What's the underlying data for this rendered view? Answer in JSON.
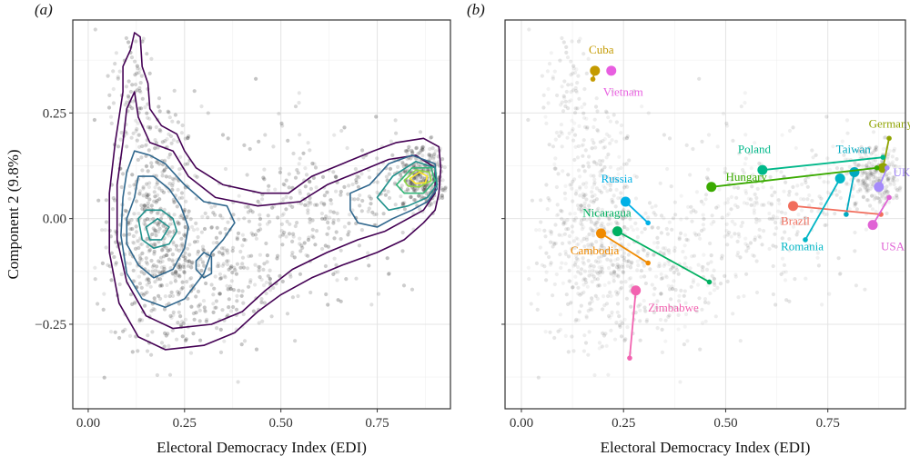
{
  "chart_data": [
    {
      "type": "scatter",
      "panel_label": "(a)",
      "xlabel": "Electoral Democracy Index (EDI)",
      "ylabel": "Component 2 (9.8%)",
      "xlim": [
        -0.04,
        0.94
      ],
      "ylim": [
        -0.45,
        0.47
      ],
      "x_ticks": [
        0.0,
        0.25,
        0.5,
        0.75
      ],
      "x_tick_labels": [
        "0.00",
        "0.25",
        "0.50",
        "0.75"
      ],
      "y_ticks": [
        -0.25,
        0.0,
        0.25
      ],
      "y_tick_labels": [
        "−0.25",
        "0.00",
        "0.25"
      ],
      "grid": true,
      "overlay": "density contours",
      "contour_colors": [
        "#440154",
        "#31688e",
        "#21918c",
        "#35b779",
        "#90d743",
        "#fde725"
      ],
      "contour_levels": [
        {
          "color": "#440154",
          "points": [
            [
              0.09,
              0.3
            ],
            [
              0.09,
              0.36
            ],
            [
              0.11,
              0.4
            ],
            [
              0.12,
              0.44
            ],
            [
              0.135,
              0.43
            ],
            [
              0.14,
              0.36
            ],
            [
              0.155,
              0.32
            ],
            [
              0.16,
              0.26
            ],
            [
              0.19,
              0.22
            ],
            [
              0.23,
              0.2
            ],
            [
              0.25,
              0.16
            ],
            [
              0.28,
              0.12
            ],
            [
              0.35,
              0.08
            ],
            [
              0.45,
              0.06
            ],
            [
              0.52,
              0.06
            ],
            [
              0.58,
              0.1
            ],
            [
              0.66,
              0.13
            ],
            [
              0.74,
              0.16
            ],
            [
              0.8,
              0.18
            ],
            [
              0.87,
              0.19
            ],
            [
              0.91,
              0.17
            ],
            [
              0.915,
              0.12
            ],
            [
              0.91,
              0.06
            ],
            [
              0.9,
              0.02
            ],
            [
              0.87,
              -0.01
            ],
            [
              0.82,
              -0.05
            ],
            [
              0.75,
              -0.08
            ],
            [
              0.66,
              -0.11
            ],
            [
              0.58,
              -0.14
            ],
            [
              0.5,
              -0.18
            ],
            [
              0.44,
              -0.22
            ],
            [
              0.38,
              -0.27
            ],
            [
              0.3,
              -0.3
            ],
            [
              0.2,
              -0.31
            ],
            [
              0.13,
              -0.28
            ],
            [
              0.08,
              -0.2
            ],
            [
              0.055,
              -0.08
            ],
            [
              0.055,
              0.06
            ],
            [
              0.07,
              0.18
            ],
            [
              0.09,
              0.3
            ]
          ]
        },
        {
          "color": "#440154",
          "points": [
            [
              0.1,
              0.26
            ],
            [
              0.12,
              0.3
            ],
            [
              0.13,
              0.24
            ],
            [
              0.16,
              0.18
            ],
            [
              0.22,
              0.16
            ],
            [
              0.26,
              0.1
            ],
            [
              0.33,
              0.05
            ],
            [
              0.44,
              0.03
            ],
            [
              0.55,
              0.04
            ],
            [
              0.62,
              0.08
            ],
            [
              0.7,
              0.11
            ],
            [
              0.78,
              0.14
            ],
            [
              0.85,
              0.15
            ],
            [
              0.9,
              0.12
            ],
            [
              0.9,
              0.06
            ],
            [
              0.87,
              0.02
            ],
            [
              0.83,
              0.0
            ],
            [
              0.77,
              -0.03
            ],
            [
              0.7,
              -0.05
            ],
            [
              0.62,
              -0.08
            ],
            [
              0.53,
              -0.12
            ],
            [
              0.46,
              -0.17
            ],
            [
              0.4,
              -0.22
            ],
            [
              0.32,
              -0.25
            ],
            [
              0.22,
              -0.26
            ],
            [
              0.15,
              -0.23
            ],
            [
              0.1,
              -0.15
            ],
            [
              0.075,
              -0.05
            ],
            [
              0.075,
              0.08
            ],
            [
              0.09,
              0.18
            ],
            [
              0.1,
              0.26
            ]
          ]
        },
        {
          "color": "#31688e",
          "points": [
            [
              0.1,
              0.11
            ],
            [
              0.12,
              0.16
            ],
            [
              0.16,
              0.15
            ],
            [
              0.2,
              0.13
            ],
            [
              0.25,
              0.08
            ],
            [
              0.3,
              0.04
            ],
            [
              0.36,
              0.03
            ],
            [
              0.38,
              -0.01
            ],
            [
              0.35,
              -0.05
            ],
            [
              0.32,
              -0.08
            ],
            [
              0.3,
              -0.13
            ],
            [
              0.25,
              -0.19
            ],
            [
              0.2,
              -0.21
            ],
            [
              0.14,
              -0.19
            ],
            [
              0.1,
              -0.13
            ],
            [
              0.085,
              -0.04
            ],
            [
              0.09,
              0.05
            ],
            [
              0.1,
              0.11
            ]
          ]
        },
        {
          "color": "#31688e",
          "points": [
            [
              0.12,
              0.05
            ],
            [
              0.13,
              0.1
            ],
            [
              0.17,
              0.1
            ],
            [
              0.21,
              0.07
            ],
            [
              0.24,
              0.03
            ],
            [
              0.26,
              -0.02
            ],
            [
              0.25,
              -0.07
            ],
            [
              0.22,
              -0.12
            ],
            [
              0.17,
              -0.14
            ],
            [
              0.13,
              -0.11
            ],
            [
              0.1,
              -0.06
            ],
            [
              0.1,
              0.0
            ],
            [
              0.12,
              0.05
            ]
          ]
        },
        {
          "color": "#31688e",
          "points": [
            [
              0.68,
              0.06
            ],
            [
              0.73,
              0.08
            ],
            [
              0.78,
              0.13
            ],
            [
              0.84,
              0.15
            ],
            [
              0.9,
              0.13
            ],
            [
              0.905,
              0.07
            ],
            [
              0.88,
              0.04
            ],
            [
              0.84,
              0.02
            ],
            [
              0.79,
              0.0
            ],
            [
              0.75,
              -0.02
            ],
            [
              0.7,
              -0.01
            ],
            [
              0.68,
              0.02
            ],
            [
              0.68,
              0.06
            ]
          ]
        },
        {
          "color": "#21918c",
          "points": [
            [
              0.13,
              0.0
            ],
            [
              0.15,
              0.02
            ],
            [
              0.19,
              0.02
            ],
            [
              0.22,
              0.0
            ],
            [
              0.23,
              -0.03
            ],
            [
              0.21,
              -0.06
            ],
            [
              0.17,
              -0.07
            ],
            [
              0.14,
              -0.05
            ],
            [
              0.13,
              0.0
            ]
          ]
        },
        {
          "color": "#21918c",
          "points": [
            [
              0.75,
              0.05
            ],
            [
              0.79,
              0.1
            ],
            [
              0.85,
              0.135
            ],
            [
              0.9,
              0.12
            ],
            [
              0.905,
              0.08
            ],
            [
              0.88,
              0.05
            ],
            [
              0.83,
              0.03
            ],
            [
              0.78,
              0.02
            ],
            [
              0.75,
              0.05
            ]
          ]
        },
        {
          "color": "#21918c",
          "points": [
            [
              0.15,
              -0.02
            ],
            [
              0.18,
              0.0
            ],
            [
              0.21,
              -0.02
            ],
            [
              0.19,
              -0.05
            ],
            [
              0.16,
              -0.05
            ],
            [
              0.15,
              -0.02
            ]
          ]
        },
        {
          "color": "#35b779",
          "points": [
            [
              0.8,
              0.08
            ],
            [
              0.84,
              0.12
            ],
            [
              0.89,
              0.12
            ],
            [
              0.9,
              0.09
            ],
            [
              0.87,
              0.06
            ],
            [
              0.82,
              0.06
            ],
            [
              0.8,
              0.08
            ]
          ]
        },
        {
          "color": "#90d743",
          "points": [
            [
              0.82,
              0.09
            ],
            [
              0.85,
              0.115
            ],
            [
              0.885,
              0.11
            ],
            [
              0.89,
              0.09
            ],
            [
              0.86,
              0.075
            ],
            [
              0.83,
              0.077
            ],
            [
              0.82,
              0.09
            ]
          ]
        },
        {
          "color": "#fde725",
          "points": [
            [
              0.835,
              0.095
            ],
            [
              0.86,
              0.11
            ],
            [
              0.88,
              0.1
            ],
            [
              0.875,
              0.085
            ],
            [
              0.85,
              0.083
            ],
            [
              0.835,
              0.095
            ]
          ]
        },
        {
          "color": "#31688e",
          "points": [
            [
              0.28,
              -0.1
            ],
            [
              0.3,
              -0.08
            ],
            [
              0.32,
              -0.09
            ],
            [
              0.32,
              -0.13
            ],
            [
              0.3,
              -0.14
            ],
            [
              0.28,
              -0.12
            ],
            [
              0.28,
              -0.1
            ]
          ]
        }
      ]
    },
    {
      "type": "scatter",
      "panel_label": "(b)",
      "xlabel": "Electoral Democracy Index (EDI)",
      "xlim": [
        -0.04,
        0.94
      ],
      "ylim": [
        -0.45,
        0.47
      ],
      "x_ticks": [
        0.0,
        0.25,
        0.5,
        0.75
      ],
      "x_tick_labels": [
        "0.00",
        "0.25",
        "0.50",
        "0.75"
      ],
      "y_ticks": [
        -0.25,
        0.0,
        0.25
      ],
      "grid": true,
      "trajectories": [
        {
          "name": "Cuba",
          "color": "#c49a00",
          "label_at": [
            0.165,
            0.39
          ],
          "start": [
            0.18,
            0.35
          ],
          "path": [
            [
              0.175,
              0.33
            ],
            [
              0.18,
              0.35
            ]
          ]
        },
        {
          "name": "Vietnam",
          "color": "#e85ee0",
          "label_at": [
            0.2,
            0.29
          ],
          "start": [
            0.22,
            0.35
          ],
          "path": [
            [
              0.22,
              0.35
            ],
            [
              0.22,
              0.35
            ]
          ]
        },
        {
          "name": "Germany",
          "color": "#8fa300",
          "label_at": [
            0.85,
            0.215
          ],
          "start": [
            0.885,
            0.12
          ],
          "path": [
            [
              0.9,
              0.19
            ],
            [
              0.885,
              0.12
            ]
          ]
        },
        {
          "name": "Poland",
          "color": "#00b88a",
          "label_at": [
            0.53,
            0.155
          ],
          "start": [
            0.59,
            0.115
          ],
          "path": [
            [
              0.885,
              0.145
            ],
            [
              0.59,
              0.115
            ]
          ]
        },
        {
          "name": "Taiwan",
          "color": "#00a9c0",
          "label_at": [
            0.77,
            0.155
          ],
          "start": [
            0.815,
            0.11
          ],
          "path": [
            [
              0.795,
              0.01
            ],
            [
              0.815,
              0.11
            ]
          ]
        },
        {
          "name": "Hungary",
          "color": "#3aaa00",
          "label_at": [
            0.5,
            0.09
          ],
          "start": [
            0.465,
            0.075
          ],
          "path": [
            [
              0.87,
              0.12
            ],
            [
              0.465,
              0.075
            ]
          ]
        },
        {
          "name": "UK",
          "color": "#a58afa",
          "label_at": [
            0.91,
            0.1
          ],
          "start": [
            0.875,
            0.075
          ],
          "path": [
            [
              0.895,
              0.12
            ],
            [
              0.875,
              0.075
            ]
          ]
        },
        {
          "name": "Russia",
          "color": "#00b0e6",
          "label_at": [
            0.195,
            0.085
          ],
          "start": [
            0.255,
            0.04
          ],
          "path": [
            [
              0.31,
              -0.01
            ],
            [
              0.255,
              0.04
            ]
          ]
        },
        {
          "name": "Nicaragua",
          "color": "#00b060",
          "label_at": [
            0.15,
            0.005
          ],
          "start": [
            0.235,
            -0.03
          ],
          "path": [
            [
              0.46,
              -0.15
            ],
            [
              0.235,
              -0.03
            ]
          ]
        },
        {
          "name": "Brazil",
          "color": "#f16d5c",
          "label_at": [
            0.635,
            -0.015
          ],
          "start": [
            0.665,
            0.03
          ],
          "path": [
            [
              0.88,
              0.01
            ],
            [
              0.665,
              0.03
            ]
          ]
        },
        {
          "name": "Romania",
          "color": "#00b5c5",
          "label_at": [
            0.635,
            -0.075
          ],
          "start": [
            0.78,
            0.095
          ],
          "path": [
            [
              0.695,
              -0.05
            ],
            [
              0.78,
              0.095
            ]
          ]
        },
        {
          "name": "USA",
          "color": "#e062d5",
          "label_at": [
            0.88,
            -0.075
          ],
          "start": [
            0.86,
            -0.015
          ],
          "path": [
            [
              0.9,
              0.05
            ],
            [
              0.86,
              -0.015
            ]
          ]
        },
        {
          "name": "Cambodia",
          "color": "#f08a00",
          "label_at": [
            0.12,
            -0.085
          ],
          "start": [
            0.195,
            -0.035
          ],
          "path": [
            [
              0.31,
              -0.105
            ],
            [
              0.195,
              -0.035
            ]
          ]
        },
        {
          "name": "Zimbabwe",
          "color": "#f263b0",
          "label_at": [
            0.31,
            -0.22
          ],
          "start": [
            0.28,
            -0.17
          ],
          "path": [
            [
              0.265,
              -0.33
            ],
            [
              0.28,
              -0.17
            ]
          ]
        }
      ]
    }
  ]
}
